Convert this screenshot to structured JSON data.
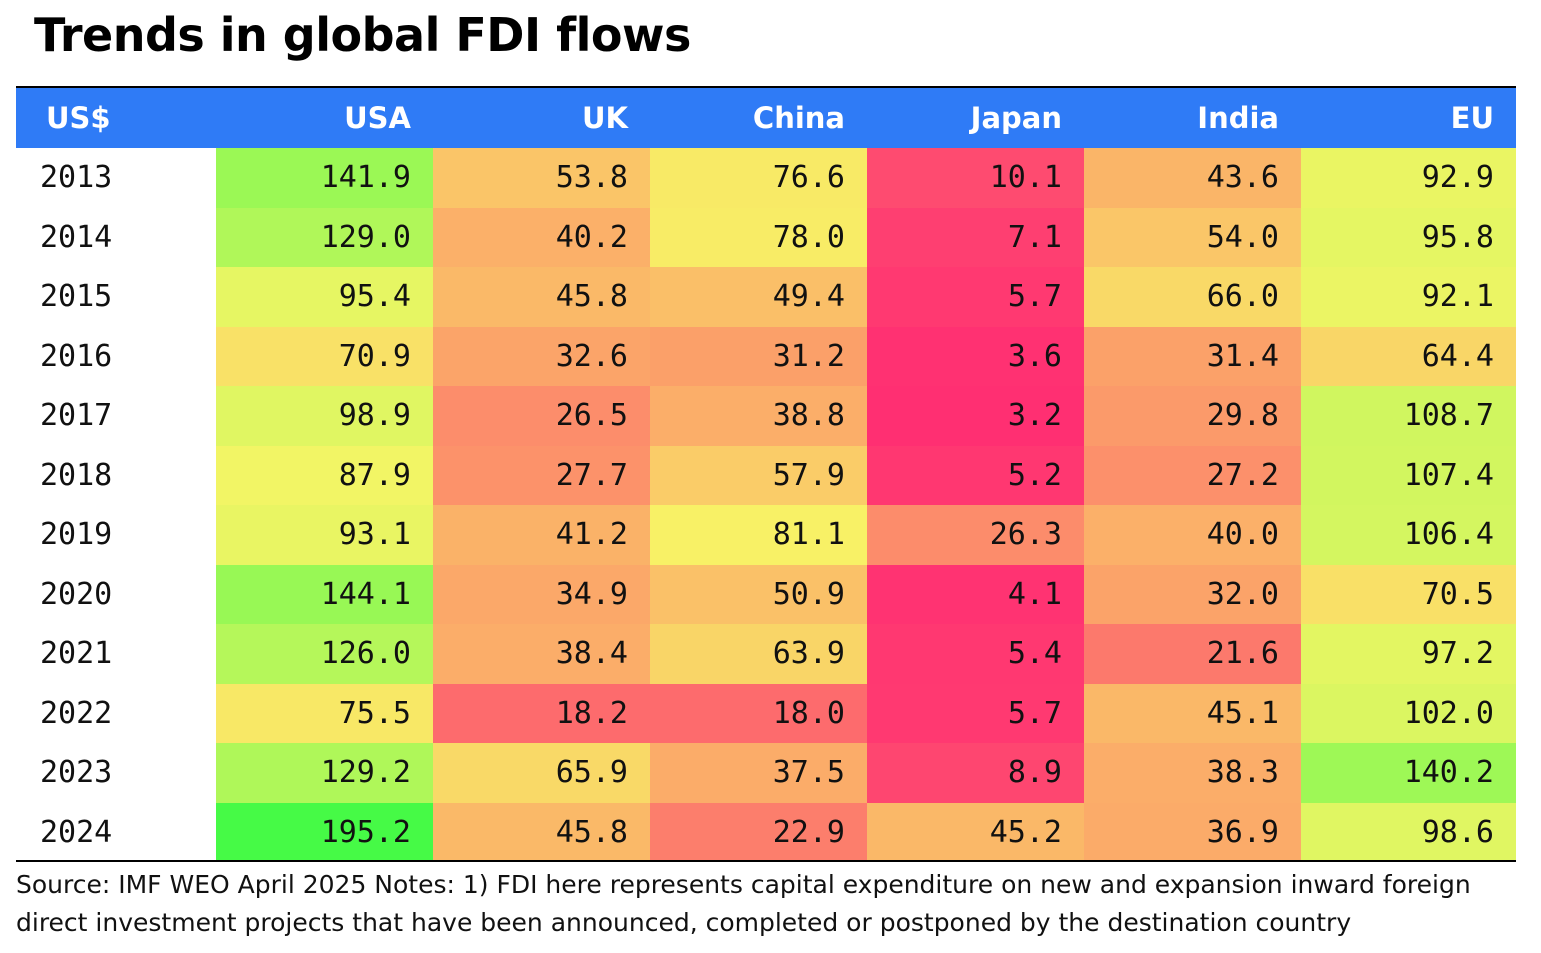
{
  "title": "Trends in global FDI flows",
  "chart_data": {
    "type": "table",
    "title": "Trends in global FDI flows",
    "corner_label": "US$",
    "columns": [
      "USA",
      "UK",
      "China",
      "Japan",
      "India",
      "EU"
    ],
    "rows": [
      {
        "year": "2013",
        "values": [
          "141.9",
          "53.8",
          "76.6",
          "10.1",
          "43.6",
          "92.9"
        ]
      },
      {
        "year": "2014",
        "values": [
          "129.0",
          "40.2",
          "78.0",
          "7.1",
          "54.0",
          "95.8"
        ]
      },
      {
        "year": "2015",
        "values": [
          "95.4",
          "45.8",
          "49.4",
          "5.7",
          "66.0",
          "92.1"
        ]
      },
      {
        "year": "2016",
        "values": [
          "70.9",
          "32.6",
          "31.2",
          "3.6",
          "31.4",
          "64.4"
        ]
      },
      {
        "year": "2017",
        "values": [
          "98.9",
          "26.5",
          "38.8",
          "3.2",
          "29.8",
          "108.7"
        ]
      },
      {
        "year": "2018",
        "values": [
          "87.9",
          "27.7",
          "57.9",
          "5.2",
          "27.2",
          "107.4"
        ]
      },
      {
        "year": "2019",
        "values": [
          "93.1",
          "41.2",
          "81.1",
          "26.3",
          "40.0",
          "106.4"
        ]
      },
      {
        "year": "2020",
        "values": [
          "144.1",
          "34.9",
          "50.9",
          "4.1",
          "32.0",
          "70.5"
        ]
      },
      {
        "year": "2021",
        "values": [
          "126.0",
          "38.4",
          "63.9",
          "5.4",
          "21.6",
          "97.2"
        ]
      },
      {
        "year": "2022",
        "values": [
          "75.5",
          "18.2",
          "18.0",
          "5.7",
          "45.1",
          "102.0"
        ]
      },
      {
        "year": "2023",
        "values": [
          "129.2",
          "65.9",
          "37.5",
          "8.9",
          "38.3",
          "140.2"
        ]
      },
      {
        "year": "2024",
        "values": [
          "195.2",
          "45.8",
          "22.9",
          "45.2",
          "36.9",
          "98.6"
        ]
      }
    ]
  },
  "source_note": "Source: IMF WEO April 2025 Notes: 1) FDI here represents capital expenditure on new and expansion inward foreign direct investment projects that have been announced, completed or postponed by the destination country",
  "colors": {
    "header_bg": "#2f7bf6",
    "header_text": "#ffffff",
    "scale_low": "#ff2f72",
    "scale_mid_low": "#fba369",
    "scale_mid": "#f8f566",
    "scale_high": "#46fa46"
  }
}
